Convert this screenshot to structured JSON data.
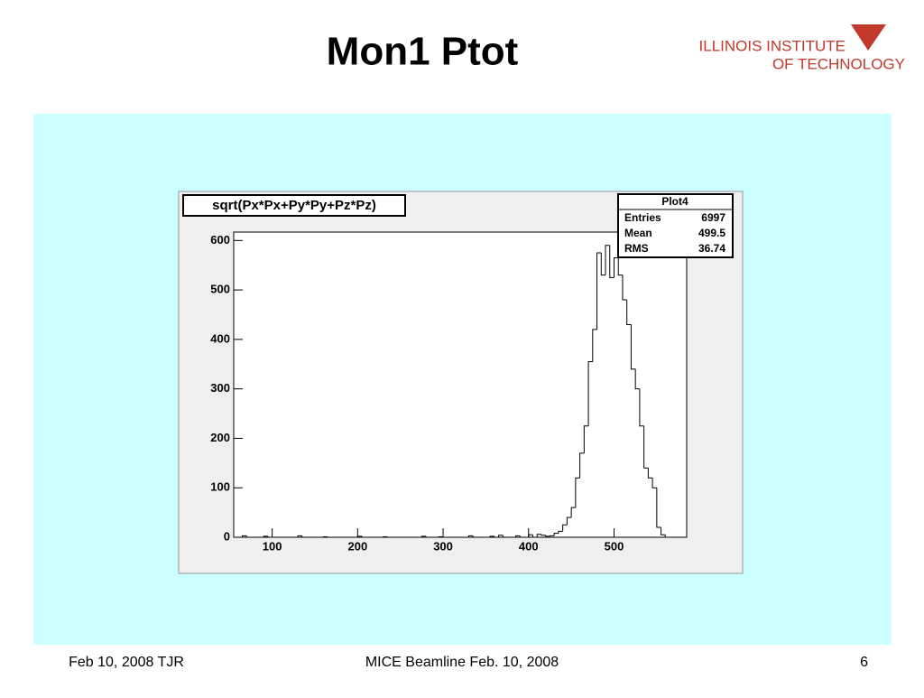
{
  "slide": {
    "title": "Mon1 Ptot",
    "logo": [
      "ILLINOIS INSTITUTE",
      "OF TECHNOLOGY"
    ],
    "footer": {
      "left": "Feb 10, 2008 TJR",
      "center": "MICE Beamline Feb. 10, 2008",
      "page": 6
    }
  },
  "chart_data": {
    "type": "histogram",
    "title": "sqrt(Px*Px+Py*Py+Pz*Pz)",
    "bins": [
      55,
      60,
      65,
      70,
      75,
      80,
      85,
      90,
      95,
      100,
      105,
      110,
      115,
      120,
      125,
      130,
      135,
      140,
      145,
      150,
      155,
      160,
      165,
      170,
      175,
      180,
      185,
      190,
      195,
      200,
      205,
      210,
      215,
      220,
      225,
      230,
      235,
      240,
      245,
      250,
      255,
      260,
      265,
      270,
      275,
      280,
      285,
      290,
      295,
      300,
      305,
      310,
      315,
      320,
      325,
      330,
      335,
      340,
      345,
      350,
      355,
      360,
      365,
      370,
      375,
      380,
      385,
      390,
      395,
      400,
      405,
      410,
      415,
      420,
      425,
      430,
      435,
      440,
      445,
      450,
      455,
      460,
      465,
      470,
      475,
      480,
      485,
      490,
      495,
      500,
      505,
      510,
      515,
      520,
      525,
      530,
      535,
      540,
      545,
      550,
      555,
      560,
      565,
      570,
      575,
      580,
      585
    ],
    "counts": [
      0,
      0,
      3,
      0,
      0,
      0,
      0,
      2,
      0,
      0,
      0,
      0,
      0,
      0,
      0,
      3,
      0,
      0,
      0,
      0,
      0,
      1,
      0,
      0,
      0,
      0,
      0,
      0,
      0,
      2,
      0,
      0,
      0,
      0,
      0,
      1,
      0,
      0,
      0,
      0,
      0,
      0,
      0,
      0,
      2,
      0,
      0,
      0,
      1,
      0,
      0,
      0,
      0,
      0,
      0,
      3,
      0,
      0,
      0,
      0,
      2,
      0,
      4,
      0,
      0,
      0,
      3,
      0,
      0,
      5,
      0,
      6,
      4,
      2,
      3,
      8,
      12,
      25,
      40,
      60,
      120,
      170,
      225,
      355,
      420,
      575,
      530,
      590,
      525,
      565,
      530,
      480,
      430,
      340,
      300,
      225,
      140,
      120,
      100,
      20,
      5,
      0,
      0,
      0,
      0,
      0
    ],
    "color": "#000000",
    "xlim": [
      55,
      585
    ],
    "ylim": [
      0,
      617
    ],
    "xticks": [
      100,
      200,
      300,
      400,
      500
    ],
    "yticks": [
      0,
      100,
      200,
      300,
      400,
      500,
      600
    ],
    "stats": {
      "name": "Plot4",
      "rows": [
        {
          "label": "Entries",
          "value": 6997
        },
        {
          "label": "Mean",
          "value": 499.5
        },
        {
          "label": "RMS",
          "value": 36.74
        }
      ]
    }
  }
}
